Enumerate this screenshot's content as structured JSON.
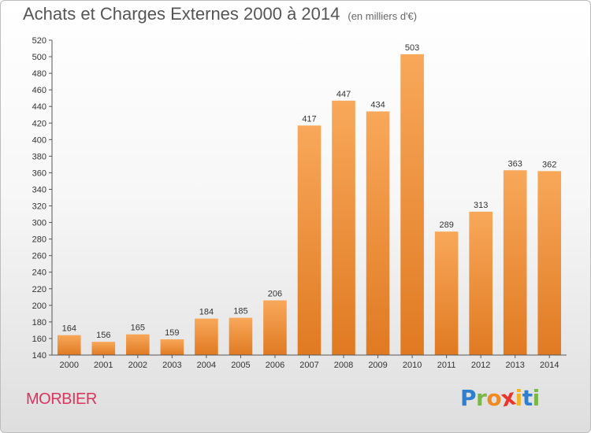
{
  "header": {
    "title": "Achats et Charges Externes 2000 à 2014",
    "subtitle": "(en milliers d'€)"
  },
  "footer": {
    "town": "MORBIER",
    "logo": {
      "letters": [
        "P",
        "r",
        "o",
        "x",
        "i",
        "t",
        "i"
      ],
      "colors": [
        "#2f7fd0",
        "#7ab648",
        "#f08a24",
        "#e8362d",
        "#f0b429",
        "#2f7fd0",
        "#7ab648"
      ]
    }
  },
  "chart_data": {
    "type": "bar",
    "title": "Achats et Charges Externes 2000 à 2014",
    "subtitle": "(en milliers d'€)",
    "categories": [
      "2000",
      "2001",
      "2002",
      "2003",
      "2004",
      "2005",
      "2006",
      "2007",
      "2008",
      "2009",
      "2010",
      "2011",
      "2012",
      "2013",
      "2014"
    ],
    "values": [
      164,
      156,
      165,
      159,
      184,
      185,
      206,
      417,
      447,
      434,
      503,
      289,
      313,
      363,
      362
    ],
    "ylim": [
      140,
      520
    ],
    "ytick_step": 20,
    "grid": false,
    "colors": {
      "bar_light": "#f8a85a",
      "bar_dark": "#e07a22",
      "axis": "#555555"
    }
  }
}
